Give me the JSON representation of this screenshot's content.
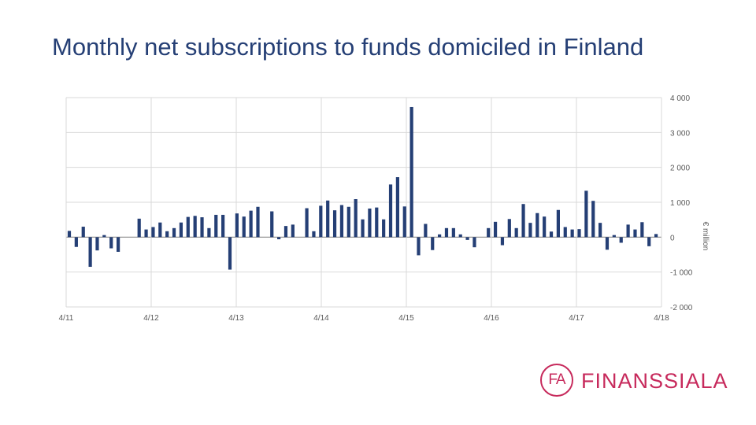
{
  "page": {
    "title": "Monthly net subscriptions to funds domiciled in Finland"
  },
  "logo": {
    "mark": "FA",
    "text": "FINANSSIALA",
    "color": "#c72a5c"
  },
  "colors": {
    "bars": "#253f75",
    "title": "#253f75",
    "grid": "#d9d9d9",
    "axis_text": "#595959"
  },
  "chart_data": {
    "type": "bar",
    "title": "Monthly net subscriptions to funds domiciled in Finland",
    "xlabel": "",
    "ylabel": "€ million",
    "y_axis_side": "right",
    "ylim": [
      -2000,
      4000
    ],
    "yticks": [
      4000,
      3000,
      2000,
      1000,
      0,
      -1000,
      -2000
    ],
    "ytick_labels": [
      "4 000",
      "3 000",
      "2 000",
      "1 000",
      "0",
      "-1 000",
      "-2 000"
    ],
    "x_tick_labels": [
      "4/11",
      "4/12",
      "4/13",
      "4/14",
      "4/15",
      "4/16",
      "4/17",
      "4/18"
    ],
    "grid": true,
    "values": [
      180,
      -280,
      300,
      -850,
      -380,
      60,
      -320,
      -420,
      0,
      0,
      530,
      220,
      290,
      420,
      170,
      260,
      420,
      580,
      610,
      570,
      260,
      640,
      640,
      -930,
      680,
      590,
      760,
      870,
      0,
      740,
      -60,
      320,
      360,
      0,
      830,
      170,
      900,
      1050,
      770,
      920,
      870,
      1090,
      510,
      820,
      850,
      510,
      1510,
      1720,
      880,
      3730,
      -520,
      380,
      -370,
      80,
      260,
      260,
      80,
      -80,
      -290,
      0,
      260,
      440,
      -230,
      520,
      260,
      950,
      410,
      690,
      590,
      160,
      780,
      290,
      220,
      230,
      1330,
      1040,
      410,
      -360,
      60,
      -160,
      360,
      220,
      430,
      -260,
      90
    ]
  }
}
